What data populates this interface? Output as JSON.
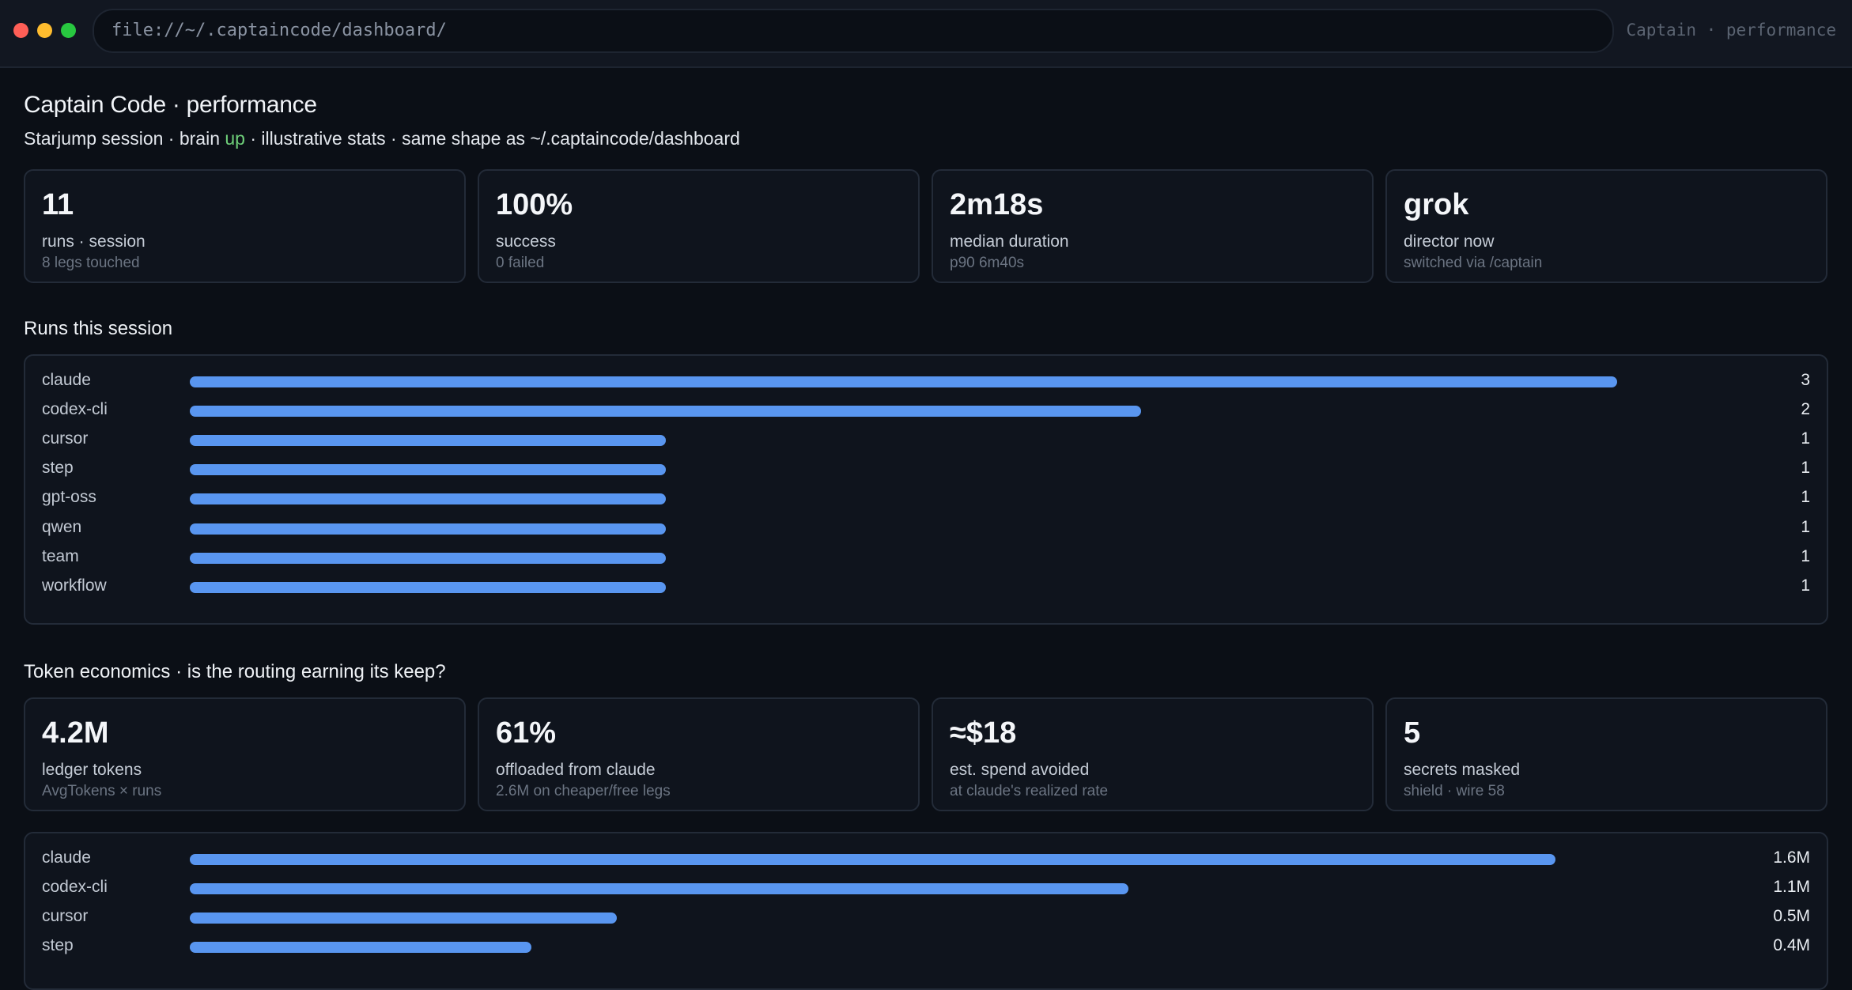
{
  "window": {
    "url": "file://~/.captaincode/dashboard/",
    "title": "Captain · performance"
  },
  "header": {
    "title": "Captain Code · performance",
    "subtitle_before": "Starjump session · brain ",
    "subtitle_status": "up",
    "subtitle_after": " · illustrative stats · same shape as ~/.captaincode/dashboard",
    "status_color": "#6fd07a"
  },
  "session_stats": [
    {
      "value": "11",
      "label": "runs · session",
      "sub": "8 legs touched"
    },
    {
      "value": "100%",
      "label": "success",
      "sub": "0 failed"
    },
    {
      "value": "2m18s",
      "label": "median duration",
      "sub": "p90 6m40s"
    },
    {
      "value": "grok",
      "label": "director now",
      "sub": "switched via /captain"
    }
  ],
  "runs_section": {
    "title": "Runs this session",
    "accent_color": "#5996f0",
    "chart_data": {
      "type": "bar",
      "orientation": "horizontal",
      "categories": [
        "claude",
        "codex-cli",
        "cursor",
        "step",
        "gpt-oss",
        "qwen",
        "team",
        "workflow"
      ],
      "values": [
        3,
        2,
        1,
        1,
        1,
        1,
        1,
        1
      ],
      "value_labels": [
        "3",
        "2",
        "1",
        "1",
        "1",
        "1",
        "1",
        "1"
      ]
    }
  },
  "token_section": {
    "title": "Token economics · is the routing earning its keep?",
    "stats": [
      {
        "value": "4.2M",
        "label": "ledger tokens",
        "sub": "AvgTokens × runs"
      },
      {
        "value": "61%",
        "label": "offloaded from claude",
        "sub": "2.6M on cheaper/free legs"
      },
      {
        "value": "≈$18",
        "label": "est. spend avoided",
        "sub": "at claude's realized rate"
      },
      {
        "value": "5",
        "label": "secrets masked",
        "sub": "shield · wire 58"
      }
    ],
    "chart_data": {
      "type": "bar",
      "orientation": "horizontal",
      "categories": [
        "claude",
        "codex-cli",
        "cursor",
        "step"
      ],
      "values": [
        1.6,
        1.1,
        0.5,
        0.4
      ],
      "value_labels": [
        "1.6M",
        "1.1M",
        "0.5M",
        "0.4M"
      ]
    }
  }
}
